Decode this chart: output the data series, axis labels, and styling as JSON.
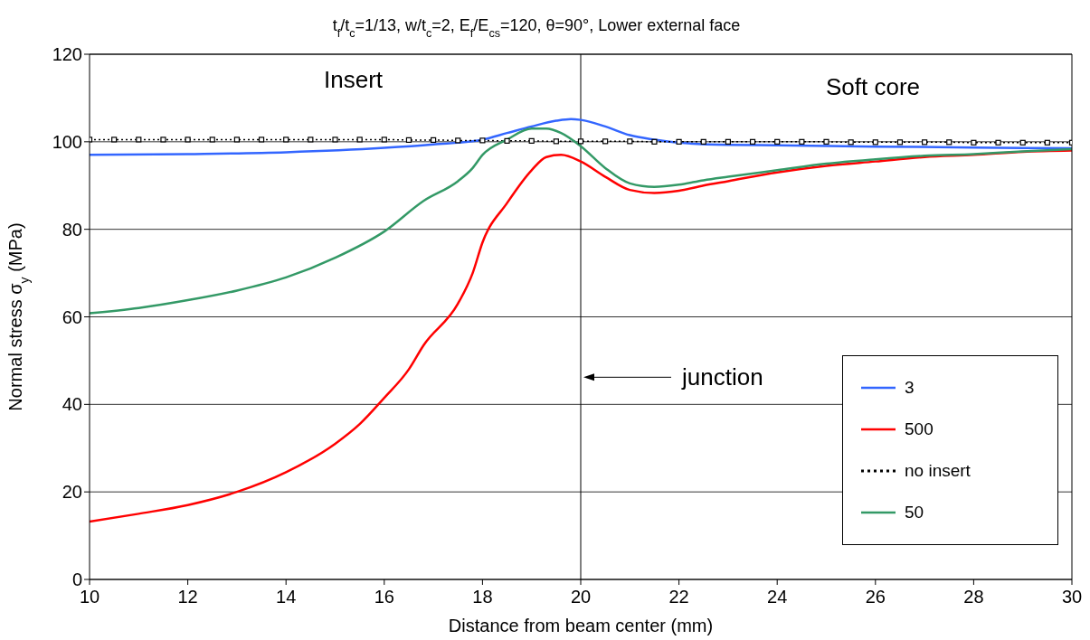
{
  "chart_data": {
    "type": "line",
    "title": "t$_{f}$/t$_{c}$=1/13,  w/t$_{c}$=2,  E$_{f}$/E$_{cs}$=120,  θ=90°,  Lower external face",
    "xlabel": "Distance from beam center (mm)",
    "ylabel": "Normal stress σ$_{y}$  (MPa)",
    "xlim": [
      10,
      30
    ],
    "xticks": [
      10,
      12,
      14,
      16,
      18,
      20,
      22,
      24,
      26,
      28,
      30
    ],
    "ylim": [
      0,
      120
    ],
    "yticks": [
      0,
      20,
      40,
      60,
      80,
      100,
      120
    ],
    "grid": "y",
    "legend": "bottom right",
    "annotations": [
      "Insert",
      "Soft core"
    ],
    "ref_lines": [
      {
        "axis": "x",
        "value": 20,
        "label": "junction",
        "color": "#000000"
      }
    ],
    "series": [
      {
        "name": "3",
        "color": "#3366ff",
        "marker": "none",
        "line_style": "solid",
        "x": [
          10,
          12,
          14,
          16,
          17,
          18,
          18.5,
          19,
          19.5,
          19.8,
          20,
          20.5,
          21,
          21.5,
          22,
          23,
          24,
          26,
          28,
          30
        ],
        "values": [
          97,
          97.2,
          97.6,
          98.6,
          99.4,
          100.5,
          102,
          103.5,
          104.8,
          105.2,
          105,
          103.5,
          101.5,
          100.5,
          99.8,
          99.3,
          99.2,
          98.9,
          98.7,
          98.5
        ]
      },
      {
        "name": "500",
        "color": "#ff0000",
        "marker": "none",
        "line_style": "solid",
        "x": [
          10,
          11,
          12,
          13,
          14,
          15,
          15.5,
          16,
          16.5,
          16.8,
          17.5,
          17.8,
          18,
          18.5,
          19,
          19.3,
          19.6,
          20,
          20.5,
          21,
          21.5,
          22,
          22.5,
          23,
          24,
          25,
          26,
          27,
          28,
          29,
          30
        ],
        "values": [
          13.2,
          15,
          17,
          20,
          24.5,
          31,
          35.5,
          41.5,
          48,
          53.5,
          63,
          70,
          77,
          86,
          93.5,
          96.5,
          97,
          95.5,
          92,
          89,
          88.3,
          88.8,
          90,
          91,
          93,
          94.5,
          95.5,
          96.5,
          97,
          97.7,
          98
        ]
      },
      {
        "name": "no insert",
        "color": "#000000",
        "marker": "square",
        "line_style": "dotted",
        "x": [
          10,
          10.5,
          11,
          11.5,
          12,
          12.5,
          13,
          13.5,
          14,
          14.5,
          15,
          15.5,
          16,
          16.5,
          17,
          17.5,
          18,
          18.5,
          19,
          19.5,
          20,
          20.5,
          21,
          21.5,
          22,
          22.5,
          23,
          23.5,
          24,
          24.5,
          25,
          25.5,
          26,
          26.5,
          27,
          27.5,
          28,
          28.5,
          29,
          29.5,
          30
        ],
        "values": [
          100.5,
          100.5,
          100.5,
          100.5,
          100.5,
          100.5,
          100.5,
          100.5,
          100.5,
          100.5,
          100.5,
          100.5,
          100.5,
          100.4,
          100.4,
          100.3,
          100.3,
          100.2,
          100.2,
          100.1,
          100.1,
          100.1,
          100.1,
          100,
          100,
          100,
          100,
          100,
          100,
          100,
          100,
          99.9,
          99.9,
          99.9,
          99.9,
          99.9,
          99.8,
          99.8,
          99.8,
          99.8,
          99.8
        ]
      },
      {
        "name": "50",
        "color": "#339966",
        "marker": "none",
        "line_style": "solid",
        "x": [
          10,
          11,
          12,
          13,
          14,
          15,
          16,
          16.8,
          17.5,
          17.8,
          18,
          18.5,
          19,
          19.3,
          19.6,
          20,
          20.5,
          21,
          21.5,
          22,
          22.5,
          23,
          24,
          25,
          26,
          27,
          28,
          29,
          30
        ],
        "values": [
          60.8,
          62,
          63.8,
          66,
          69,
          73.5,
          79.5,
          86.5,
          91,
          94,
          97,
          100.5,
          103,
          103,
          102,
          99,
          94,
          90.5,
          89.7,
          90.2,
          91.2,
          92,
          93.5,
          95,
          96,
          96.8,
          97.2,
          97.8,
          98.3
        ]
      }
    ]
  }
}
